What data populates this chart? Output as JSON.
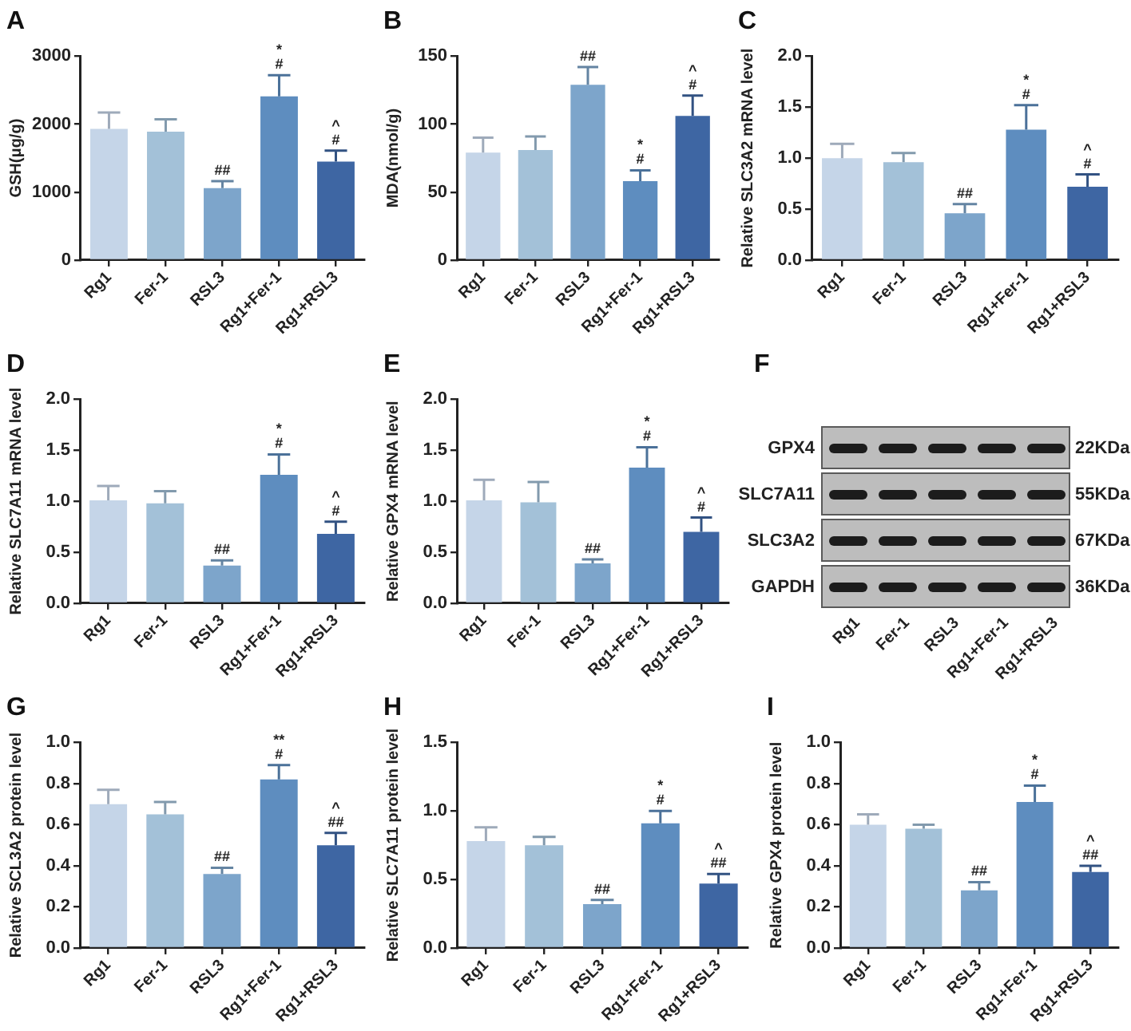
{
  "chart_data": [
    {
      "type": "bar",
      "title": "A",
      "ylabel": "GSH(μg/g)",
      "categories": [
        "Rg1",
        "Fer-1",
        "RSL3",
        "Rg1+Fer-1",
        "Rg1+RSL3"
      ],
      "values": [
        1930,
        1890,
        1060,
        2410,
        1450
      ],
      "errors": [
        240,
        180,
        100,
        310,
        160
      ],
      "colors": [
        "#c5d5e8",
        "#a3c1d8",
        "#7da5cb",
        "#5e8dbf",
        "#3e66a3"
      ],
      "ylim": [
        0,
        3000
      ],
      "yticks": [
        0,
        1000,
        2000,
        3000
      ],
      "annotations": [
        {
          "text": "##",
          "x": "RSL3",
          "y": 1160
        },
        {
          "text": "#",
          "x": "Rg1+Fer-1",
          "y": 2720
        },
        {
          "text": "*",
          "x": "Rg1+Fer-1",
          "y": 2720
        },
        {
          "text": "#",
          "x": "Rg1+RSL3",
          "y": 1610
        },
        {
          "text": "^",
          "x": "Rg1+RSL3",
          "y": 1610
        }
      ]
    },
    {
      "type": "bar",
      "title": "B",
      "ylabel": "MDA(nmol/g)",
      "categories": [
        "Rg1",
        "Fer-1",
        "RSL3",
        "Rg1+Fer-1",
        "Rg1+RSL3"
      ],
      "values": [
        79,
        81,
        129,
        58,
        106
      ],
      "errors": [
        11,
        10,
        13,
        8,
        15
      ],
      "colors": [
        "#c5d5e8",
        "#a3c1d8",
        "#7da5cb",
        "#5e8dbf",
        "#3e66a3"
      ],
      "ylim": [
        0,
        150
      ],
      "yticks": [
        0,
        50,
        100,
        150
      ],
      "annotations": [
        {
          "text": "##",
          "x": "RSL3",
          "y": 142
        },
        {
          "text": "#",
          "x": "Rg1+Fer-1",
          "y": 66
        },
        {
          "text": "*",
          "x": "Rg1+Fer-1",
          "y": 66
        },
        {
          "text": "#",
          "x": "Rg1+RSL3",
          "y": 121
        },
        {
          "text": "^",
          "x": "Rg1+RSL3",
          "y": 121
        }
      ]
    },
    {
      "type": "bar",
      "title": "C",
      "ylabel": "Relative SLC3A2 mRNA level",
      "categories": [
        "Rg1",
        "Fer-1",
        "RSL3",
        "Rg1+Fer-1",
        "Rg1+RSL3"
      ],
      "values": [
        1.0,
        0.96,
        0.46,
        1.28,
        0.72
      ],
      "errors": [
        0.14,
        0.09,
        0.09,
        0.24,
        0.12
      ],
      "colors": [
        "#c5d5e8",
        "#a3c1d8",
        "#7da5cb",
        "#5e8dbf",
        "#3e66a3"
      ],
      "ylim": [
        0,
        2
      ],
      "yticks": [
        {
          "value": 0,
          "label": "0.0"
        },
        {
          "value": 0.5,
          "label": "0.5"
        },
        {
          "value": 1,
          "label": "1.0"
        },
        {
          "value": 1.5,
          "label": "1.5"
        },
        {
          "value": 2,
          "label": "2.0"
        }
      ],
      "annotations": [
        {
          "text": "##",
          "x": "RSL3",
          "y": 0.55
        },
        {
          "text": "#",
          "x": "Rg1+Fer-1",
          "y": 1.52
        },
        {
          "text": "*",
          "x": "Rg1+Fer-1",
          "y": 1.52
        },
        {
          "text": "#",
          "x": "Rg1+RSL3",
          "y": 0.84
        },
        {
          "text": "^",
          "x": "Rg1+RSL3",
          "y": 0.84
        }
      ]
    },
    {
      "type": "bar",
      "title": "D",
      "ylabel": "Relative SLC7A11 mRNA level",
      "categories": [
        "Rg1",
        "Fer-1",
        "RSL3",
        "Rg1+Fer-1",
        "Rg1+RSL3"
      ],
      "values": [
        1.01,
        0.98,
        0.37,
        1.26,
        0.68
      ],
      "errors": [
        0.14,
        0.12,
        0.05,
        0.2,
        0.12
      ],
      "colors": [
        "#c5d5e8",
        "#a3c1d8",
        "#7da5cb",
        "#5e8dbf",
        "#3e66a3"
      ],
      "ylim": [
        0,
        2
      ],
      "yticks": [
        {
          "value": 0,
          "label": "0.0"
        },
        {
          "value": 0.5,
          "label": "0.5"
        },
        {
          "value": 1,
          "label": "1.0"
        },
        {
          "value": 1.5,
          "label": "1.5"
        },
        {
          "value": 2,
          "label": "2.0"
        }
      ],
      "annotations": [
        {
          "text": "##",
          "x": "RSL3",
          "y": 0.42
        },
        {
          "text": "#",
          "x": "Rg1+Fer-1",
          "y": 1.46
        },
        {
          "text": "*",
          "x": "Rg1+Fer-1",
          "y": 1.46
        },
        {
          "text": "#",
          "x": "Rg1+RSL3",
          "y": 0.8
        },
        {
          "text": "^",
          "x": "Rg1+RSL3",
          "y": 0.8
        }
      ]
    },
    {
      "type": "bar",
      "title": "E",
      "ylabel": "Relative GPX4 mRNA level",
      "categories": [
        "Rg1",
        "Fer-1",
        "RSL3",
        "Rg1+Fer-1",
        "Rg1+RSL3"
      ],
      "values": [
        1.01,
        0.99,
        0.39,
        1.33,
        0.7
      ],
      "errors": [
        0.2,
        0.2,
        0.04,
        0.2,
        0.14
      ],
      "colors": [
        "#c5d5e8",
        "#a3c1d8",
        "#7da5cb",
        "#5e8dbf",
        "#3e66a3"
      ],
      "ylim": [
        0,
        2
      ],
      "yticks": [
        {
          "value": 0,
          "label": "0.0"
        },
        {
          "value": 0.5,
          "label": "0.5"
        },
        {
          "value": 1,
          "label": "1.0"
        },
        {
          "value": 1.5,
          "label": "1.5"
        },
        {
          "value": 2,
          "label": "2.0"
        }
      ],
      "annotations": [
        {
          "text": "##",
          "x": "RSL3",
          "y": 0.43
        },
        {
          "text": "#",
          "x": "Rg1+Fer-1",
          "y": 1.53
        },
        {
          "text": "*",
          "x": "Rg1+Fer-1",
          "y": 1.53
        },
        {
          "text": "#",
          "x": "Rg1+RSL3",
          "y": 0.84
        },
        {
          "text": "^",
          "x": "Rg1+RSL3",
          "y": 0.84
        }
      ]
    },
    {
      "type": "other",
      "title": "F",
      "categories": [
        "Rg1",
        "Fer-1",
        "RSL3",
        "Rg1+Fer-1",
        "Rg1+RSL3"
      ],
      "y_categories": [
        "GPX4",
        "SLC7A11",
        "SLC3A2",
        "GAPDH"
      ],
      "y2_categories": [
        "22KDa",
        "55KDa",
        "67KDa",
        "36KDa"
      ]
    },
    {
      "type": "bar",
      "title": "G",
      "ylabel": "Relative SCL3A2 protein level",
      "categories": [
        "Rg1",
        "Fer-1",
        "RSL3",
        "Rg1+Fer-1",
        "Rg1+RSL3"
      ],
      "values": [
        0.7,
        0.65,
        0.36,
        0.82,
        0.5
      ],
      "errors": [
        0.07,
        0.06,
        0.03,
        0.07,
        0.06
      ],
      "colors": [
        "#c5d5e8",
        "#a3c1d8",
        "#7da5cb",
        "#5e8dbf",
        "#3e66a3"
      ],
      "ylim": [
        0,
        1
      ],
      "yticks": [
        {
          "value": 0,
          "label": "0.0"
        },
        {
          "value": 0.2,
          "label": "0.2"
        },
        {
          "value": 0.4,
          "label": "0.4"
        },
        {
          "value": 0.6,
          "label": "0.6"
        },
        {
          "value": 0.8,
          "label": "0.8"
        },
        {
          "value": 1,
          "label": "1.0"
        }
      ],
      "annotations": [
        {
          "text": "##",
          "x": "RSL3",
          "y": 0.39
        },
        {
          "text": "#",
          "x": "Rg1+Fer-1",
          "y": 0.89
        },
        {
          "text": "**",
          "x": "Rg1+Fer-1",
          "y": 0.89
        },
        {
          "text": "##",
          "x": "Rg1+RSL3",
          "y": 0.56
        },
        {
          "text": "^",
          "x": "Rg1+RSL3",
          "y": 0.56
        }
      ]
    },
    {
      "type": "bar",
      "title": "H",
      "ylabel": "Relative SLC7A11 protein level",
      "categories": [
        "Rg1",
        "Fer-1",
        "RSL3",
        "Rg1+Fer-1",
        "Rg1+RSL3"
      ],
      "values": [
        0.78,
        0.75,
        0.32,
        0.91,
        0.47
      ],
      "errors": [
        0.1,
        0.06,
        0.03,
        0.09,
        0.07
      ],
      "colors": [
        "#c5d5e8",
        "#a3c1d8",
        "#7da5cb",
        "#5e8dbf",
        "#3e66a3"
      ],
      "ylim": [
        0,
        1.5
      ],
      "yticks": [
        {
          "value": 0,
          "label": "0.0"
        },
        {
          "value": 0.5,
          "label": "0.5"
        },
        {
          "value": 1,
          "label": "1.0"
        },
        {
          "value": 1.5,
          "label": "1.5"
        }
      ],
      "annotations": [
        {
          "text": "##",
          "x": "RSL3",
          "y": 0.35
        },
        {
          "text": "#",
          "x": "Rg1+Fer-1",
          "y": 1.0
        },
        {
          "text": "*",
          "x": "Rg1+Fer-1",
          "y": 1.0
        },
        {
          "text": "##",
          "x": "Rg1+RSL3",
          "y": 0.54
        },
        {
          "text": "^",
          "x": "Rg1+RSL3",
          "y": 0.54
        }
      ]
    },
    {
      "type": "bar",
      "title": "I",
      "ylabel": "Relative GPX4 protein level",
      "categories": [
        "Rg1",
        "Fer-1",
        "RSL3",
        "Rg1+Fer-1",
        "Rg1+RSL3"
      ],
      "values": [
        0.6,
        0.58,
        0.28,
        0.71,
        0.37
      ],
      "errors": [
        0.05,
        0.02,
        0.04,
        0.08,
        0.03
      ],
      "colors": [
        "#c5d5e8",
        "#a3c1d8",
        "#7da5cb",
        "#5e8dbf",
        "#3e66a3"
      ],
      "ylim": [
        0,
        1
      ],
      "yticks": [
        {
          "value": 0,
          "label": "0.0"
        },
        {
          "value": 0.2,
          "label": "0.2"
        },
        {
          "value": 0.4,
          "label": "0.4"
        },
        {
          "value": 0.6,
          "label": "0.6"
        },
        {
          "value": 0.8,
          "label": "0.8"
        },
        {
          "value": 1,
          "label": "1.0"
        }
      ],
      "annotations": [
        {
          "text": "##",
          "x": "RSL3",
          "y": 0.32
        },
        {
          "text": "#",
          "x": "Rg1+Fer-1",
          "y": 0.79
        },
        {
          "text": "*",
          "x": "Rg1+Fer-1",
          "y": 0.79
        },
        {
          "text": "##",
          "x": "Rg1+RSL3",
          "y": 0.4
        },
        {
          "text": "^",
          "x": "Rg1+RSL3",
          "y": 0.4
        }
      ]
    }
  ]
}
